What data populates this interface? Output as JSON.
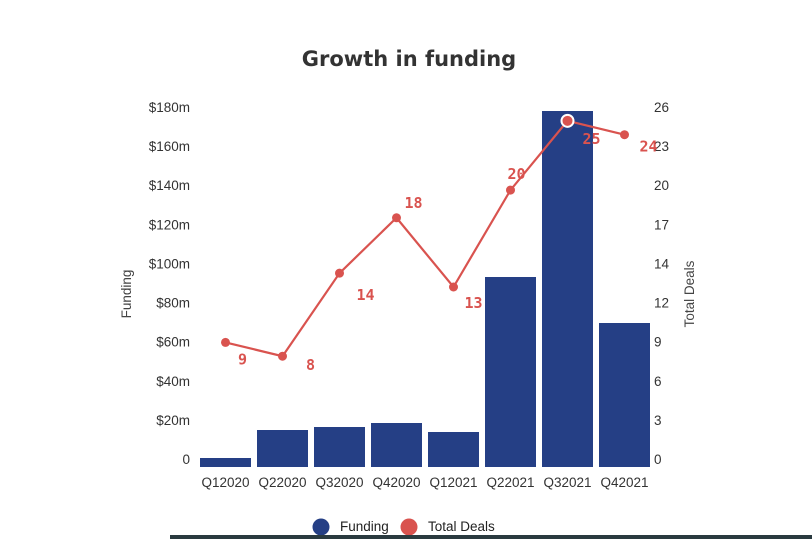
{
  "chart_data": {
    "type": "bar",
    "title": "Growth in funding",
    "categories": [
      "Q12020",
      "Q22020",
      "Q32020",
      "Q42020",
      "Q12021",
      "Q22021",
      "Q32021",
      "Q42021"
    ],
    "series": [
      {
        "name": "Funding",
        "type": "bar",
        "axis": "left",
        "color": "#253f85",
        "values": [
          4.5,
          18.5,
          20,
          22,
          17.5,
          95,
          178,
          72
        ]
      },
      {
        "name": "Total Deals",
        "type": "line",
        "axis": "right",
        "color": "#d9534f",
        "values": [
          9,
          8,
          14,
          18,
          13,
          20,
          25,
          24
        ],
        "labels": [
          "9",
          "8",
          "14",
          "18",
          "13",
          "20",
          "25",
          "24"
        ]
      }
    ],
    "ylabel": "Funding",
    "ylabel_right": "Total Deals",
    "ylim": [
      0,
      180
    ],
    "ylim_right": [
      0,
      26
    ],
    "yticks": [
      "0",
      "$20m",
      "$40m",
      "$60m",
      "$80m",
      "$100m",
      "$120m",
      "$140m",
      "$160m",
      "$180m"
    ],
    "yticks_right": [
      "0",
      "3",
      "6",
      "9",
      "12",
      "14",
      "17",
      "20",
      "23",
      "26"
    ],
    "grid": false,
    "legend_position": "bottom"
  }
}
